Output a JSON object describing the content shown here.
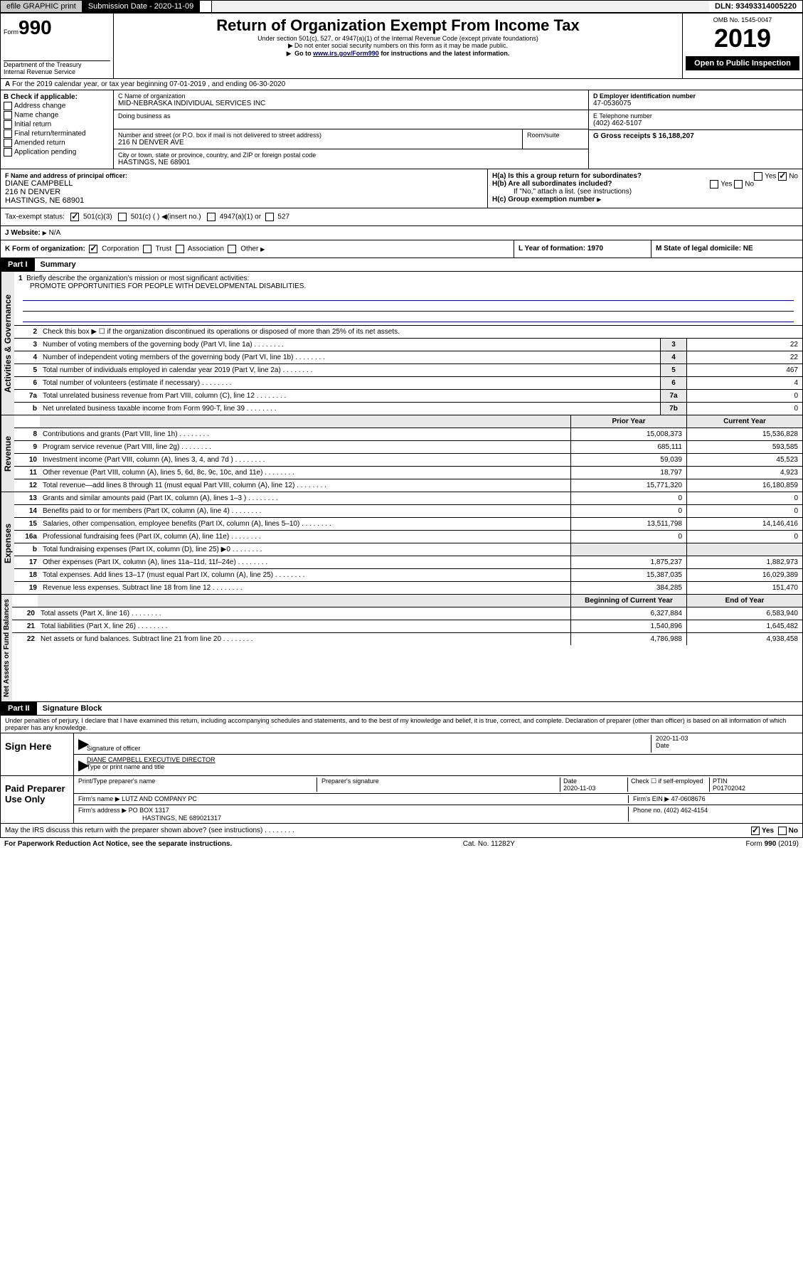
{
  "topbar": {
    "efile": "efile GRAPHIC print",
    "subdate_label": "Submission Date - 2020-11-09",
    "dln": "DLN: 93493314005220"
  },
  "header": {
    "form_prefix": "Form",
    "form_num": "990",
    "dept": "Department of the Treasury\nInternal Revenue Service",
    "title": "Return of Organization Exempt From Income Tax",
    "subtitle": "Under section 501(c), 527, or 4947(a)(1) of the Internal Revenue Code (except private foundations)",
    "note1": "Do not enter social security numbers on this form as it may be made public.",
    "note2_pre": "Go to ",
    "note2_link": "www.irs.gov/Form990",
    "note2_post": " for instructions and the latest information.",
    "omb": "OMB No. 1545-0047",
    "year": "2019",
    "open": "Open to Public Inspection"
  },
  "row_a": {
    "text": "For the 2019 calendar year, or tax year beginning 07-01-2019   , and ending 06-30-2020",
    "prefix": "A"
  },
  "b": {
    "label": "B Check if applicable:",
    "opts": [
      "Address change",
      "Name change",
      "Initial return",
      "Final return/terminated",
      "Amended return",
      "Application pending"
    ]
  },
  "c": {
    "name_label": "C Name of organization",
    "name": "MID-NEBRASKA INDIVIDUAL SERVICES INC",
    "dba_label": "Doing business as",
    "addr_label": "Number and street (or P.O. box if mail is not delivered to street address)",
    "room_label": "Room/suite",
    "addr": "216 N DENVER AVE",
    "city_label": "City or town, state or province, country, and ZIP or foreign postal code",
    "city": "HASTINGS, NE  68901"
  },
  "d": {
    "label": "D Employer identification number",
    "val": "47-0536075"
  },
  "e": {
    "label": "E Telephone number",
    "val": "(402) 462-5107"
  },
  "g": {
    "label": "G Gross receipts $ 16,188,207"
  },
  "f": {
    "label": "F Name and address of principal officer:",
    "name": "DIANE CAMPBELL",
    "addr1": "216 N DENVER",
    "addr2": "HASTINGS, NE  68901"
  },
  "h": {
    "a": "H(a)  Is this a group return for subordinates?",
    "b": "H(b)  Are all subordinates included?",
    "b_note": "If \"No,\" attach a list. (see instructions)",
    "c": "H(c)  Group exemption number",
    "yes": "Yes",
    "no": "No"
  },
  "i": {
    "label": "Tax-exempt status:",
    "c3": "501(c)(3)",
    "c": "501(c) (  )",
    "ins": "(insert no.)",
    "a1": "4947(a)(1) or",
    "s527": "527"
  },
  "j": {
    "label": "J  Website:",
    "val": "N/A"
  },
  "k": {
    "label": "K Form of organization:",
    "corp": "Corporation",
    "trust": "Trust",
    "assoc": "Association",
    "other": "Other"
  },
  "l": {
    "label": "L Year of formation: 1970"
  },
  "m": {
    "label": "M State of legal domicile: NE"
  },
  "part1": {
    "hdr": "Part I",
    "title": "Summary",
    "tabs": {
      "gov": "Activities & Governance",
      "rev": "Revenue",
      "exp": "Expenses",
      "net": "Net Assets or Fund Balances"
    },
    "l1": "Briefly describe the organization's mission or most significant activities:",
    "mission": "PROMOTE OPPORTUNITIES FOR PEOPLE WITH DEVELOPMENTAL DISABILITIES.",
    "l2": "Check this box ▶ ☐  if the organization discontinued its operations or disposed of more than 25% of its net assets.",
    "rows_gov": [
      {
        "n": "3",
        "t": "Number of voting members of the governing body (Part VI, line 1a)",
        "box": "3",
        "v": "22"
      },
      {
        "n": "4",
        "t": "Number of independent voting members of the governing body (Part VI, line 1b)",
        "box": "4",
        "v": "22"
      },
      {
        "n": "5",
        "t": "Total number of individuals employed in calendar year 2019 (Part V, line 2a)",
        "box": "5",
        "v": "467"
      },
      {
        "n": "6",
        "t": "Total number of volunteers (estimate if necessary)",
        "box": "6",
        "v": "4"
      },
      {
        "n": "7a",
        "t": "Total unrelated business revenue from Part VIII, column (C), line 12",
        "box": "7a",
        "v": "0"
      },
      {
        "n": "b",
        "t": "Net unrelated business taxable income from Form 990-T, line 39",
        "box": "7b",
        "v": "0"
      }
    ],
    "col_hdr": {
      "prior": "Prior Year",
      "curr": "Current Year"
    },
    "rows_rev": [
      {
        "n": "8",
        "t": "Contributions and grants (Part VIII, line 1h)",
        "p": "15,008,373",
        "c": "15,536,828"
      },
      {
        "n": "9",
        "t": "Program service revenue (Part VIII, line 2g)",
        "p": "685,111",
        "c": "593,585"
      },
      {
        "n": "10",
        "t": "Investment income (Part VIII, column (A), lines 3, 4, and 7d )",
        "p": "59,039",
        "c": "45,523"
      },
      {
        "n": "11",
        "t": "Other revenue (Part VIII, column (A), lines 5, 6d, 8c, 9c, 10c, and 11e)",
        "p": "18,797",
        "c": "4,923"
      },
      {
        "n": "12",
        "t": "Total revenue—add lines 8 through 11 (must equal Part VIII, column (A), line 12)",
        "p": "15,771,320",
        "c": "16,180,859"
      }
    ],
    "rows_exp": [
      {
        "n": "13",
        "t": "Grants and similar amounts paid (Part IX, column (A), lines 1–3 )",
        "p": "0",
        "c": "0"
      },
      {
        "n": "14",
        "t": "Benefits paid to or for members (Part IX, column (A), line 4)",
        "p": "0",
        "c": "0"
      },
      {
        "n": "15",
        "t": "Salaries, other compensation, employee benefits (Part IX, column (A), lines 5–10)",
        "p": "13,511,798",
        "c": "14,146,416"
      },
      {
        "n": "16a",
        "t": "Professional fundraising fees (Part IX, column (A), line 11e)",
        "p": "0",
        "c": "0"
      },
      {
        "n": "b",
        "t": "Total fundraising expenses (Part IX, column (D), line 25) ▶0",
        "p": "",
        "c": "",
        "gray": true
      },
      {
        "n": "17",
        "t": "Other expenses (Part IX, column (A), lines 11a–11d, 11f–24e)",
        "p": "1,875,237",
        "c": "1,882,973"
      },
      {
        "n": "18",
        "t": "Total expenses. Add lines 13–17 (must equal Part IX, column (A), line 25)",
        "p": "15,387,035",
        "c": "16,029,389"
      },
      {
        "n": "19",
        "t": "Revenue less expenses. Subtract line 18 from line 12",
        "p": "384,285",
        "c": "151,470"
      }
    ],
    "col_hdr2": {
      "begin": "Beginning of Current Year",
      "end": "End of Year"
    },
    "rows_net": [
      {
        "n": "20",
        "t": "Total assets (Part X, line 16)",
        "p": "6,327,884",
        "c": "6,583,940"
      },
      {
        "n": "21",
        "t": "Total liabilities (Part X, line 26)",
        "p": "1,540,896",
        "c": "1,645,482"
      },
      {
        "n": "22",
        "t": "Net assets or fund balances. Subtract line 21 from line 20",
        "p": "4,786,988",
        "c": "4,938,458"
      }
    ]
  },
  "part2": {
    "hdr": "Part II",
    "title": "Signature Block",
    "declaration": "Under penalties of perjury, I declare that I have examined this return, including accompanying schedules and statements, and to the best of my knowledge and belief, it is true, correct, and complete. Declaration of preparer (other than officer) is based on all information of which preparer has any knowledge.",
    "sign_here": "Sign Here",
    "sig_officer": "Signature of officer",
    "sig_date": "2020-11-03",
    "date_label": "Date",
    "officer_name": "DIANE CAMPBELL EXECUTIVE DIRECTOR",
    "name_title": "Type or print name and title",
    "paid": "Paid Preparer Use Only",
    "prep_name_label": "Print/Type preparer's name",
    "prep_sig_label": "Preparer's signature",
    "prep_date": "2020-11-03",
    "check_self": "Check ☐ if self-employed",
    "ptin_label": "PTIN",
    "ptin": "P01702042",
    "firm_name_label": "Firm's name    ▶",
    "firm_name": "LUTZ AND COMPANY PC",
    "firm_ein": "Firm's EIN ▶ 47-0608676",
    "firm_addr_label": "Firm's address ▶",
    "firm_addr": "PO BOX 1317",
    "firm_city": "HASTINGS, NE  689021317",
    "phone": "Phone no. (402) 462-4154",
    "discuss": "May the IRS discuss this return with the preparer shown above? (see instructions)",
    "yes": "Yes",
    "no": "No"
  },
  "footer": {
    "left": "For Paperwork Reduction Act Notice, see the separate instructions.",
    "mid": "Cat. No. 11282Y",
    "right": "Form 990 (2019)"
  }
}
